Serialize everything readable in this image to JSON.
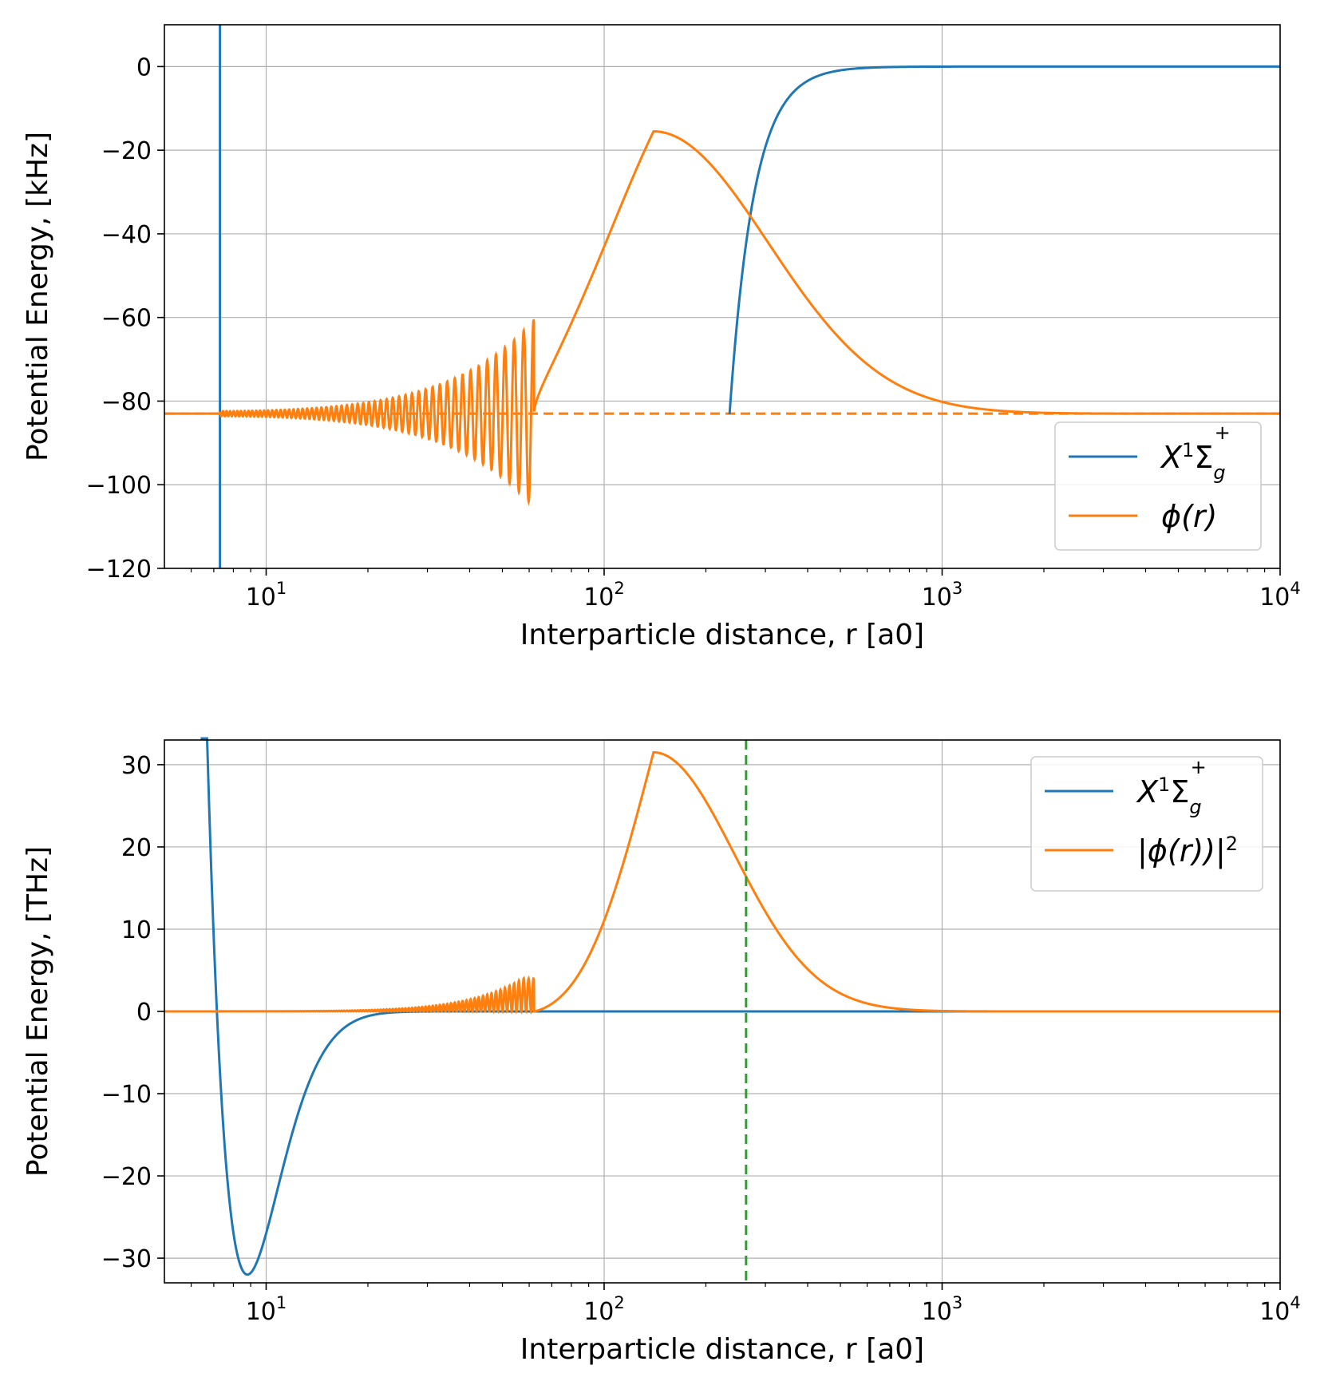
{
  "chart_data": [
    {
      "type": "line",
      "xscale": "log",
      "xlim": [
        5,
        10000
      ],
      "ylim": [
        -120,
        10
      ],
      "ylabel": "Potential Energy, [kHz]",
      "xlabel": "Interparticle distance, r [a0]",
      "yticks": [
        0,
        -20,
        -40,
        -60,
        -80,
        -100,
        -120
      ],
      "ytick_labels": [
        "0",
        "−20",
        "−40",
        "−60",
        "−80",
        "−100",
        "−120"
      ],
      "xticks": [
        10,
        100,
        1000,
        10000
      ],
      "xtick_labels": [
        {
          "base": "10",
          "exp": "1"
        },
        {
          "base": "10",
          "exp": "2"
        },
        {
          "base": "10",
          "exp": "3"
        },
        {
          "base": "10",
          "exp": "4"
        }
      ],
      "grid": true,
      "legend": "lower-right",
      "series": [
        {
          "name": "X¹Σg⁺",
          "color": "#1f77b4"
        },
        {
          "name": "ϕ(r)",
          "color": "#ff7f0e"
        }
      ],
      "reference_lines": [
        {
          "orientation": "horizontal",
          "y": -83,
          "style": "dashed",
          "color": "#ff7f0e"
        }
      ],
      "legend_labels": {
        "blue": {
          "main": "X",
          "sup1": "1",
          "sigma": "Σ",
          "sub": "g",
          "sup2": "+"
        },
        "orange": {
          "main": "ϕ(r)"
        }
      }
    },
    {
      "type": "line",
      "xscale": "log",
      "xlim": [
        5,
        10000
      ],
      "ylim": [
        -33,
        33
      ],
      "ylabel": "Potential Energy, [THz]",
      "xlabel": "Interparticle distance, r [a0]",
      "yticks": [
        30,
        20,
        10,
        0,
        -10,
        -20,
        -30
      ],
      "ytick_labels": [
        "30",
        "20",
        "10",
        "0",
        "−10",
        "−20",
        "−30"
      ],
      "xticks": [
        10,
        100,
        1000,
        10000
      ],
      "xtick_labels": [
        {
          "base": "10",
          "exp": "1"
        },
        {
          "base": "10",
          "exp": "2"
        },
        {
          "base": "10",
          "exp": "3"
        },
        {
          "base": "10",
          "exp": "4"
        }
      ],
      "grid": true,
      "legend": "upper-right",
      "series": [
        {
          "name": "X¹Σg⁺",
          "color": "#1f77b4"
        },
        {
          "name": "|ϕ(r))|²",
          "color": "#ff7f0e"
        }
      ],
      "reference_lines": [
        {
          "orientation": "vertical",
          "x": 263,
          "style": "dashed",
          "color": "#2ca02c"
        }
      ],
      "legend_labels": {
        "blue": {
          "main": "X",
          "sup1": "1",
          "sigma": "Σ",
          "sub": "g",
          "sup2": "+"
        },
        "orange": {
          "main": "|ϕ(r))|",
          "sup": "2"
        }
      }
    }
  ]
}
